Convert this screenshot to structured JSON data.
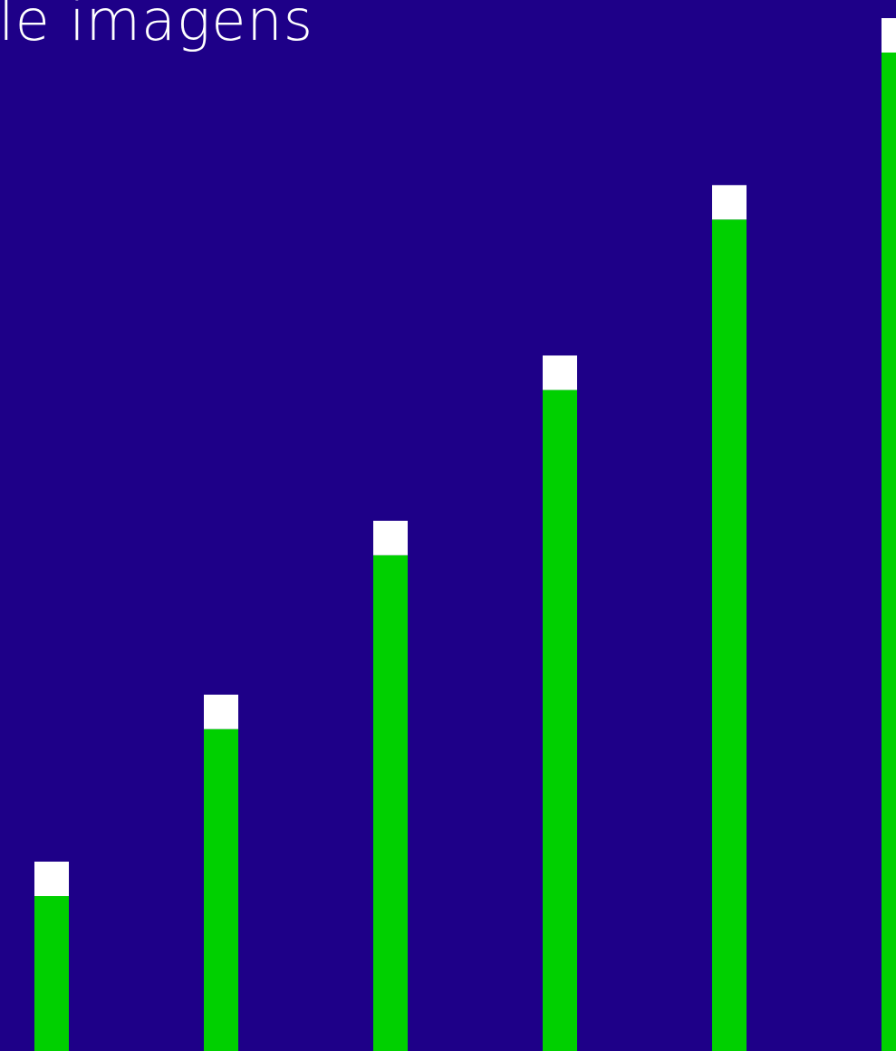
{
  "chart_data": {
    "type": "bar",
    "title": "le imagens",
    "values": [
      1.1,
      2.07,
      3.08,
      4.04,
      5.03,
      6.0
    ],
    "color": "#00d000",
    "cap_color": "#ffffff",
    "background": "#1e0088"
  }
}
